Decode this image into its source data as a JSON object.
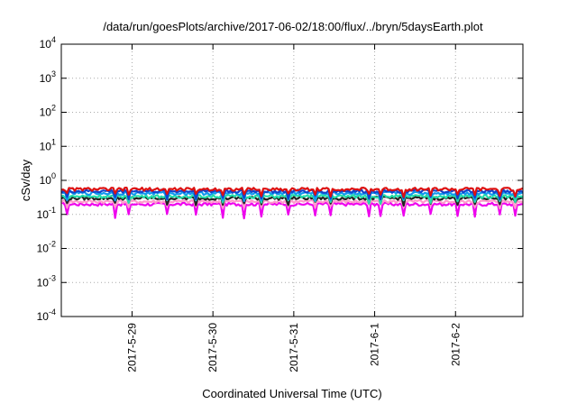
{
  "chart_data": {
    "type": "line",
    "title": "/data/run/goesPlots/archive/2017-06-02/18:00/flux/../bryn/5daysEarth.plot",
    "xlabel": "Coordinated Universal Time (UTC)",
    "ylabel": "cSv/day",
    "yscale": "log",
    "ylim": [
      0.0001,
      10000
    ],
    "y_ticks": [
      {
        "value": 0.0001,
        "base": "10",
        "exp": "-4"
      },
      {
        "value": 0.001,
        "base": "10",
        "exp": "-3"
      },
      {
        "value": 0.01,
        "base": "10",
        "exp": "-2"
      },
      {
        "value": 0.1,
        "base": "10",
        "exp": "-1"
      },
      {
        "value": 1,
        "base": "10",
        "exp": "0"
      },
      {
        "value": 10,
        "base": "10",
        "exp": "1"
      },
      {
        "value": 100,
        "base": "10",
        "exp": "2"
      },
      {
        "value": 1000,
        "base": "10",
        "exp": "3"
      },
      {
        "value": 10000,
        "base": "10",
        "exp": "4"
      }
    ],
    "xlim": [
      "2017-05-28 03:00",
      "2017-06-02 20:00"
    ],
    "x_ticks": [
      {
        "value": "2017-05-29",
        "label": "2017-5-29"
      },
      {
        "value": "2017-05-30",
        "label": "2017-5-30"
      },
      {
        "value": "2017-05-31",
        "label": "2017-5-31"
      },
      {
        "value": "2017-06-01",
        "label": "2017-6-1"
      },
      {
        "value": "2017-06-02",
        "label": "2017-6-2"
      }
    ],
    "grid": true,
    "series": [
      {
        "color": "#dd1111",
        "level": 0.55,
        "dip_level": 0.38
      },
      {
        "color": "#1144cc",
        "level": 0.48,
        "dip_level": 0.32
      },
      {
        "color": "#1199ee",
        "level": 0.42,
        "dip_level": 0.28
      },
      {
        "color": "#22ddaa",
        "level": 0.34,
        "dip_level": 0.24
      },
      {
        "color": "#222222",
        "level": 0.3,
        "dip_level": 0.21
      },
      {
        "color": "#ff99cc",
        "level": 0.24,
        "dip_level": 0.17
      },
      {
        "color": "#ee00ee",
        "level": 0.2,
        "dip_level": 0.09
      }
    ]
  }
}
